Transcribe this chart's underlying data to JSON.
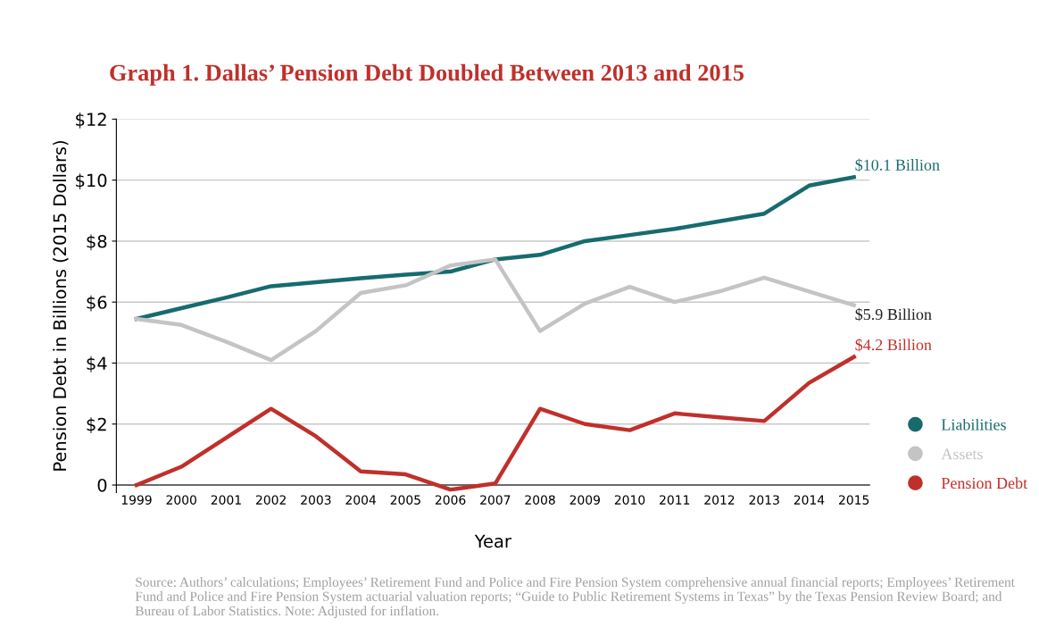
{
  "chart_data": {
    "type": "line",
    "title": "Graph 1. Dallas’ Pension Debt Doubled Between 2013 and 2015",
    "xlabel": "Year",
    "ylabel": "Pension Debt in Billions (2015 Dollars)",
    "categories": [
      "1999",
      "2000",
      "2001",
      "2002",
      "2003",
      "2004",
      "2005",
      "2006",
      "2007",
      "2008",
      "2009",
      "2010",
      "2011",
      "2012",
      "2013",
      "2014",
      "2015"
    ],
    "series": [
      {
        "name": "Liabilities",
        "color": "#176b6e",
        "values": [
          5.45,
          5.8,
          6.15,
          6.52,
          6.65,
          6.78,
          6.9,
          7.0,
          7.4,
          7.55,
          8.0,
          8.2,
          8.4,
          8.65,
          8.9,
          9.82,
          10.1
        ]
      },
      {
        "name": "Assets",
        "color": "#c4c4c4",
        "values": [
          5.45,
          5.25,
          4.7,
          4.1,
          5.05,
          6.3,
          6.55,
          7.2,
          7.4,
          5.05,
          5.95,
          6.5,
          6.0,
          6.35,
          6.8,
          6.35,
          5.9
        ]
      },
      {
        "name": "Pension Debt",
        "color": "#c0302b",
        "values": [
          0,
          0.6,
          1.55,
          2.5,
          1.6,
          0.45,
          0.35,
          -0.15,
          0.05,
          2.5,
          2.0,
          1.8,
          2.35,
          2.22,
          2.1,
          3.35,
          4.2
        ]
      }
    ],
    "ylim": [
      -0.25,
      12
    ],
    "yticks": [
      {
        "value": 0,
        "label": "0"
      },
      {
        "value": 2,
        "label": "$2"
      },
      {
        "value": 4,
        "label": "$4"
      },
      {
        "value": 6,
        "label": "$6"
      },
      {
        "value": 8,
        "label": "$8"
      },
      {
        "value": 10,
        "label": "$10"
      },
      {
        "value": 12,
        "label": "$12"
      }
    ],
    "grid": "y",
    "legend": "right",
    "line_style": "solid",
    "marker": "none",
    "annotations": [
      {
        "text": "$10.1 Billion",
        "x": "2015",
        "y": 10.1
      },
      {
        "text": "$5.9 Billion",
        "x": "2015",
        "y": 5.9
      },
      {
        "text": "$4.2 Billion",
        "x": "2015",
        "y": 4.2
      },
      "Source: Authors’ calculations; Employees’ Retirement Fund and Police and Fire Pension System comprehensive annual financial reports; Employees’ Retirement Fund and Police and Fire Pension System actuarial valuation reports; “Guide to Public Retirement Systems in Texas” by the Texas Pension Review Board; and Bureau of Labor Statistics. Note: Adjusted for inflation."
    ]
  }
}
